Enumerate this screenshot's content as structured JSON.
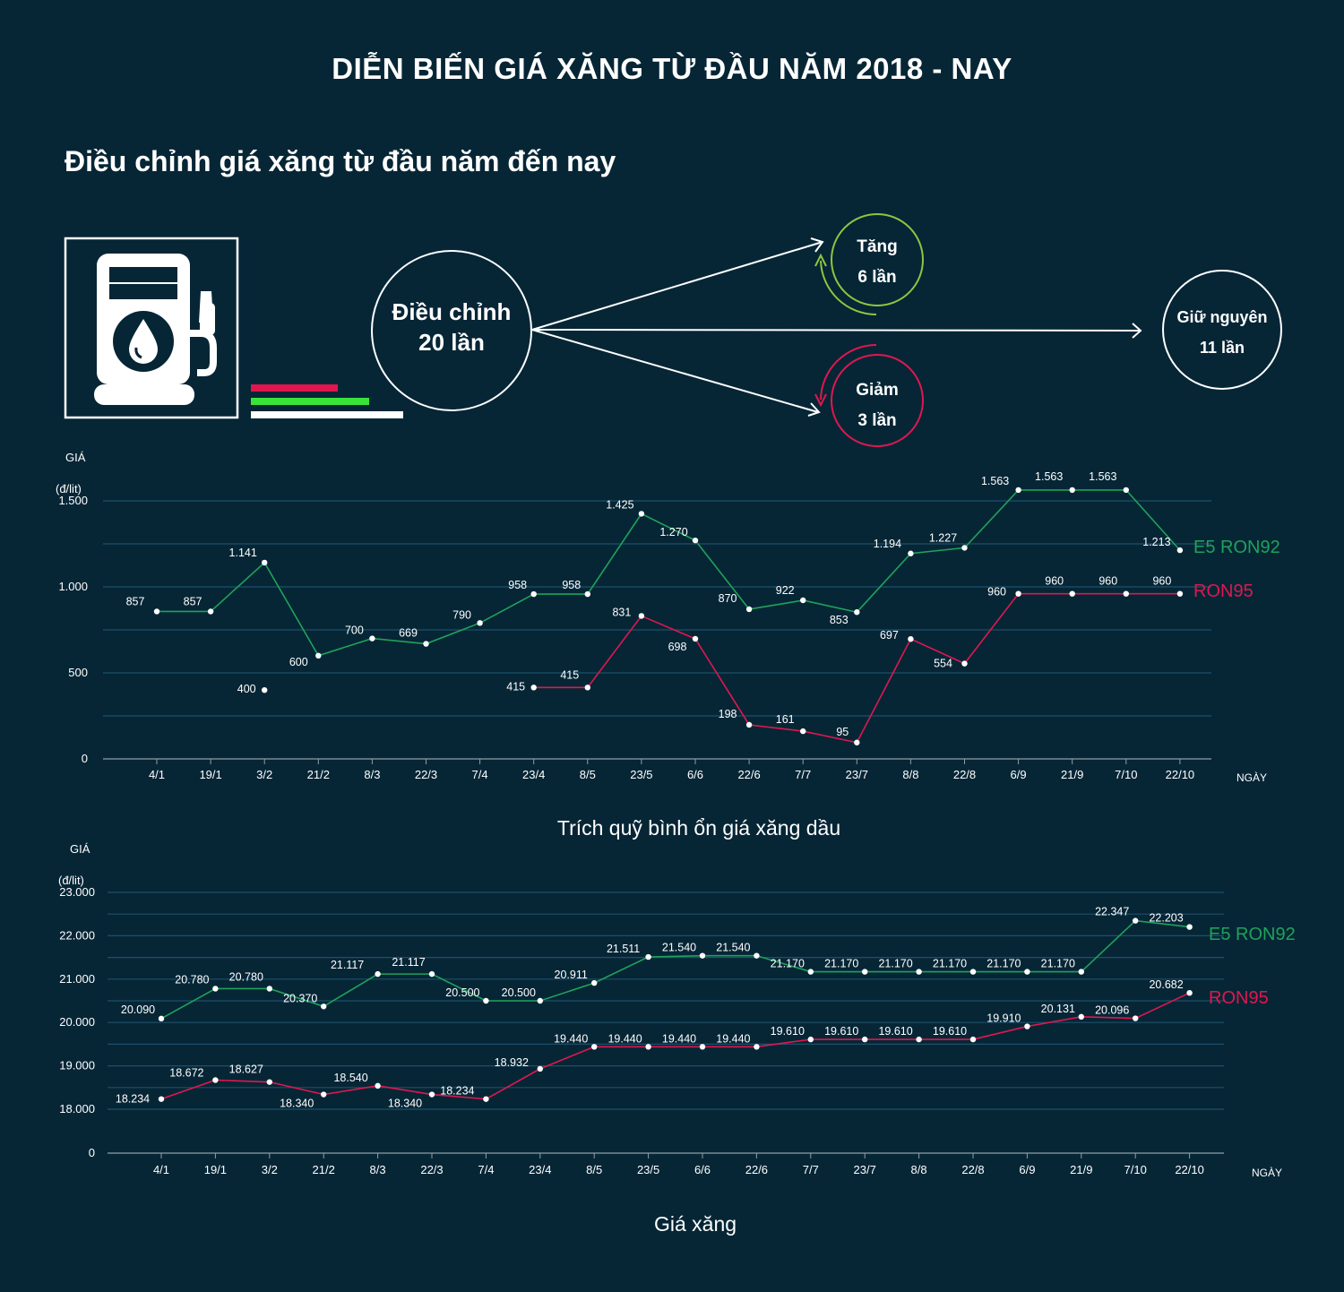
{
  "header": {
    "title": "DIỄN BIẾN GIÁ XĂNG TỪ ĐẦU NĂM 2018 - NAY",
    "subtitle": "Điều chỉnh giá xăng từ đầu năm đến nay"
  },
  "summary": {
    "total": {
      "line1": "Điều chỉnh",
      "line2": "20 lần"
    },
    "increase": {
      "line1": "Tăng",
      "line2": "6 lần",
      "color": "#8dc63f"
    },
    "decrease": {
      "line1": "Giảm",
      "line2": "3 lần",
      "color": "#e0174f"
    },
    "unchanged": {
      "line1": "Giữ nguyên",
      "line2": "11 lần"
    }
  },
  "chart_data": [
    {
      "type": "line",
      "caption": "Trích quỹ bình ổn giá xăng dầu",
      "ylabel": "GIÁ",
      "yunit": "(đ/lit)",
      "xlabel": "NGÀY",
      "categories": [
        "4/1",
        "19/1",
        "3/2",
        "21/2",
        "8/3",
        "22/3",
        "7/4",
        "23/4",
        "8/5",
        "23/5",
        "6/6",
        "22/6",
        "7/7",
        "23/7",
        "8/8",
        "22/8",
        "6/9",
        "21/9",
        "7/10",
        "22/10"
      ],
      "ylim": [
        0,
        1500
      ],
      "yticks": [
        0,
        500,
        1000,
        1500
      ],
      "ytick_labels": [
        "0",
        "500",
        "1.000",
        "1.500"
      ],
      "grid": true,
      "series": [
        {
          "name": "E5 RON92",
          "color": "#1fa25a",
          "values": [
            857,
            857,
            1141,
            600,
            700,
            669,
            790,
            958,
            958,
            1425,
            1270,
            870,
            922,
            853,
            1194,
            1227,
            1563,
            1563,
            1563,
            1213
          ],
          "labels": [
            "857",
            "857",
            "1.141",
            "600",
            "700",
            "669",
            "790",
            "958",
            "958",
            "1.425",
            "1.270",
            "870",
            "922",
            "853",
            "1.194",
            "1.227",
            "1.563",
            "1.563",
            "1.563",
            "1.213"
          ]
        },
        {
          "name": "RON95",
          "color": "#e0174f",
          "values": [
            null,
            null,
            400,
            null,
            null,
            null,
            null,
            415,
            415,
            831,
            698,
            198,
            161,
            95,
            697,
            554,
            960,
            960,
            960,
            960
          ],
          "labels": [
            null,
            null,
            "400",
            null,
            null,
            null,
            null,
            "415",
            "415",
            "831",
            "698",
            "198",
            "161",
            "95",
            "697",
            "554",
            "960",
            "960",
            "960",
            "960"
          ]
        }
      ]
    },
    {
      "type": "line",
      "caption": "Giá xăng",
      "ylabel": "GIÁ",
      "yunit": "(đ/lit)",
      "xlabel": "NGÀY",
      "categories": [
        "4/1",
        "19/1",
        "3/2",
        "21/2",
        "8/3",
        "22/3",
        "7/4",
        "23/4",
        "8/5",
        "23/5",
        "6/6",
        "22/6",
        "7/7",
        "23/7",
        "8/8",
        "22/8",
        "6/9",
        "21/9",
        "7/10",
        "22/10"
      ],
      "yticks": [
        0,
        18000,
        19000,
        20000,
        21000,
        22000,
        23000
      ],
      "ytick_labels": [
        "0",
        "18.000",
        "19.000",
        "20.000",
        "21.000",
        "22.000",
        "23.000"
      ],
      "grid": true,
      "series": [
        {
          "name": "E5 RON92",
          "color": "#1fa25a",
          "values": [
            20090,
            20780,
            20780,
            20370,
            21117,
            21117,
            20500,
            20500,
            20911,
            21511,
            21540,
            21540,
            21170,
            21170,
            21170,
            21170,
            21170,
            21170,
            22347,
            22203
          ],
          "labels": [
            "20.090",
            "20.780",
            "20.780",
            "20.370",
            "21.117",
            "21.117",
            "20.500",
            "20.500",
            "20.911",
            "21.511",
            "21.540",
            "21.540",
            "21.170",
            "21.170",
            "21.170",
            "21.170",
            "21.170",
            "21.170",
            "22.347",
            "22.203"
          ]
        },
        {
          "name": "RON95",
          "color": "#e0174f",
          "values": [
            18234,
            18672,
            18627,
            18340,
            18540,
            18340,
            18234,
            18932,
            19440,
            19440,
            19440,
            19440,
            19610,
            19610,
            19610,
            19610,
            19910,
            20131,
            20096,
            20682
          ],
          "labels": [
            "18.234",
            "18.672",
            "18.627",
            "18.340",
            "18.540",
            "18.340",
            "18.234",
            "18.932",
            "19.440",
            "19.440",
            "19.440",
            "19.440",
            "19.610",
            "19.610",
            "19.610",
            "19.610",
            "19.910",
            "20.131",
            "20.096",
            "20.682"
          ]
        }
      ]
    }
  ]
}
